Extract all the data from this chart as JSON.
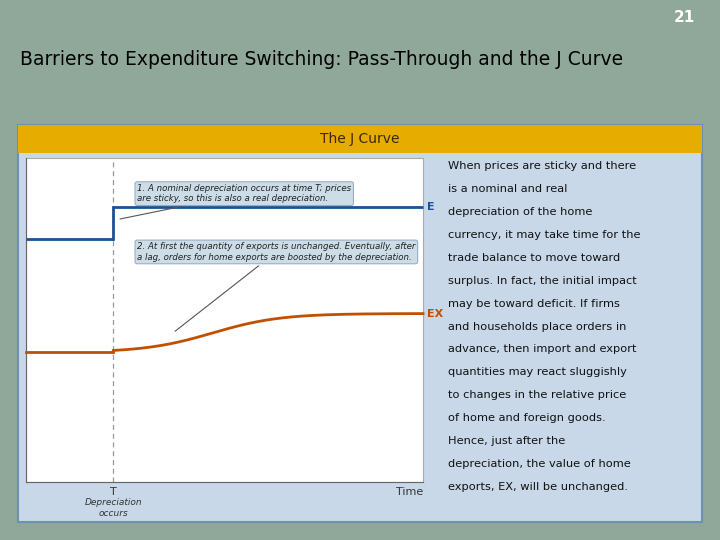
{
  "slide_number": "21",
  "title": "Barriers to Expenditure Switching: Pass-Through and the J Curve",
  "box_title": "The J Curve",
  "slide_bg": "#8fa89a",
  "content_bg": "#ffffff",
  "title_color": "#000000",
  "box_title_bg": "#e6ad00",
  "box_title_text_color": "#3a2800",
  "box_bg": "#c8d8e8",
  "box_border_color": "#7090b0",
  "graph_bg": "#ffffff",
  "e_line_color": "#1a5296",
  "ex_line_color": "#c05000",
  "annotation1": "1. A nominal depreciation occurs at time T; prices\nare sticky, so this is also a real depreciation.",
  "annotation2": "2. At first the quantity of exports is unchanged. Eventually, after\na lag, orders for home exports are boosted by the depreciation.",
  "annot_bg": "#ccdde8",
  "annot_border": "#90a8c0",
  "label_e": "E",
  "label_ex": "EX",
  "xlabel": "Time",
  "xtick_label": "T",
  "xtick_sub": "Depreciation\noccurs",
  "right_text_lines": [
    "When prices are sticky and there",
    "is a nominal and real",
    "depreciation of the home",
    "currency, it may take time for the",
    "trade balance to move toward",
    "surplus. In fact, the initial impact",
    "may be toward deficit. If firms",
    "and households place orders in",
    "advance, then import and export",
    "quantities may react sluggishly",
    "to changes in the relative price",
    "of home and foreign goods.",
    "Hence, just after the",
    "depreciation, the value of home",
    "exports, EX, will be unchanged."
  ],
  "right_text_color": "#111111",
  "num_bar_color": "#8fa89a"
}
